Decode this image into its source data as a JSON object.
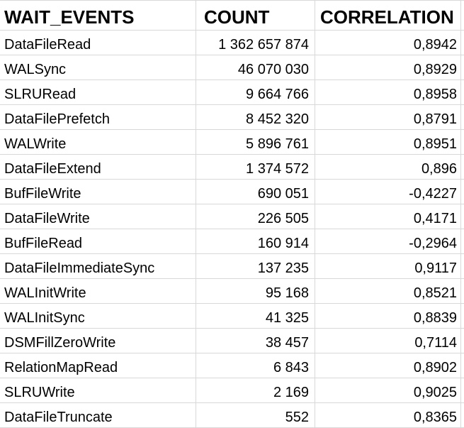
{
  "chart_data": {
    "type": "table",
    "columns": [
      {
        "label": "WAIT_EVENTS"
      },
      {
        "label": "COUNT"
      },
      {
        "label": "CORRELATION"
      }
    ],
    "number_format": {
      "thousands_separator": " ",
      "decimal_separator": ","
    },
    "rows": [
      {
        "event": "DataFileRead",
        "count": "1 362 657 874",
        "correlation": "0,8942"
      },
      {
        "event": "WALSync",
        "count": "46 070 030",
        "correlation": "0,8929"
      },
      {
        "event": "SLRURead",
        "count": "9 664 766",
        "correlation": "0,8958"
      },
      {
        "event": "DataFilePrefetch",
        "count": "8 452 320",
        "correlation": "0,8791"
      },
      {
        "event": "WALWrite",
        "count": "5 896 761",
        "correlation": "0,8951"
      },
      {
        "event": "DataFileExtend",
        "count": "1 374 572",
        "correlation": "0,896"
      },
      {
        "event": "BufFileWrite",
        "count": "690 051",
        "correlation": "-0,4227"
      },
      {
        "event": "DataFileWrite",
        "count": "226 505",
        "correlation": "0,4171"
      },
      {
        "event": "BufFileRead",
        "count": "160 914",
        "correlation": "-0,2964"
      },
      {
        "event": "DataFileImmediateSync",
        "count": "137 235",
        "correlation": "0,9117"
      },
      {
        "event": "WALInitWrite",
        "count": "95 168",
        "correlation": "0,8521"
      },
      {
        "event": "WALInitSync",
        "count": "41 325",
        "correlation": "0,8839"
      },
      {
        "event": "DSMFillZeroWrite",
        "count": "38 457",
        "correlation": "0,7114"
      },
      {
        "event": "RelationMapRead",
        "count": "6 843",
        "correlation": "0,8902"
      },
      {
        "event": "SLRUWrite",
        "count": "2 169",
        "correlation": "0,9025"
      },
      {
        "event": "DataFileTruncate",
        "count": "552",
        "correlation": "0,8365"
      }
    ]
  },
  "colors": {
    "grid": "#d8d8d8",
    "text": "#000000",
    "bg": "#ffffff"
  }
}
